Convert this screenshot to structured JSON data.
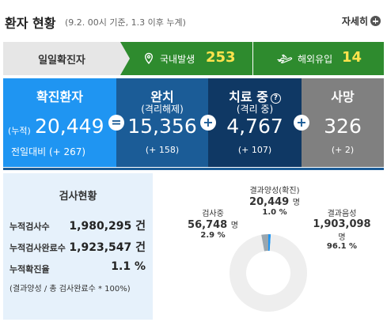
{
  "header": {
    "title": "환자 현황",
    "subtitle": "(9.2. 00시 기준, 1.3 이후 누계)",
    "more_label": "자세히"
  },
  "daily": {
    "label": "일일확진자",
    "domestic_label": "국내발생",
    "domestic_value": "253",
    "overseas_label": "해외유입",
    "overseas_value": "14"
  },
  "stats": {
    "confirmed": {
      "title": "확진환자",
      "cum_label": "(누적)",
      "value": "20,449",
      "delta": "전일대비 (+ 267)"
    },
    "released": {
      "title": "완치",
      "sub": "(격리해제)",
      "value": "15,356",
      "delta": "(+ 158)"
    },
    "treating": {
      "title": "치료 중",
      "sub": "(격리 중)",
      "value": "4,767",
      "delta": "(+ 107)"
    },
    "death": {
      "title": "사망",
      "value": "326",
      "delta": "(+ 2)"
    },
    "op_equals": "=",
    "op_plus": "+",
    "help_glyph": "?"
  },
  "tests": {
    "title": "검사현황",
    "rows": [
      {
        "label": "누적검사수",
        "value": "1,980,295 건"
      },
      {
        "label": "누적검사완료수",
        "value": "1,923,547 건"
      },
      {
        "label": "누적확진율",
        "value": "1.1 %"
      }
    ],
    "note": "(결과양성 / 총 검사완료수 * 100%)"
  },
  "chart_data": {
    "type": "pie",
    "title": "",
    "slices": [
      {
        "name": "검사중",
        "value": 56748,
        "value_text": "56,748",
        "unit": "명",
        "percent": 2.9,
        "percent_text": "2.9 %",
        "color": "#9aa6ae"
      },
      {
        "name": "결과양성(확진)",
        "value": 20449,
        "value_text": "20,449",
        "unit": "명",
        "percent": 1.0,
        "percent_text": "1.0 %",
        "color": "#1f95f2"
      },
      {
        "name": "결과음성",
        "value": 1903098,
        "value_text": "1,903,098",
        "unit": "명",
        "percent": 96.1,
        "percent_text": "96.1 %",
        "color": "#eeeeee"
      }
    ]
  },
  "colors": {
    "daily_green": "#2e8b2e",
    "daily_value_yellow": "#ffe34d",
    "confirmed_blue": "#1f95f2",
    "released_blue": "#1b5c97",
    "treating_navy": "#0f3864",
    "death_gray": "#808080"
  }
}
